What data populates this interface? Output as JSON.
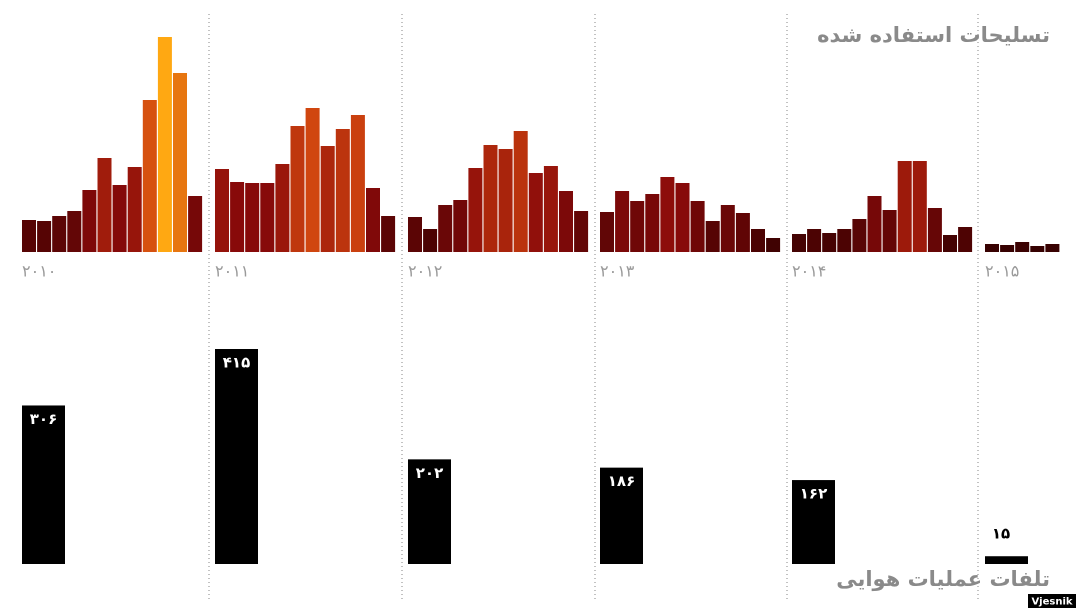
{
  "chart_data": [
    {
      "type": "grouped-bar",
      "title": "تسلیحات استفاده شده",
      "categories": [
        "۲۰۱۰",
        "۲۰۱۱",
        "۲۰۱۲",
        "۲۰۱۳",
        "۲۰۱۴",
        "۲۰۱۵"
      ],
      "values": [
        [
          32,
          31,
          36,
          41,
          62,
          94,
          67,
          85,
          152,
          215,
          179,
          56
        ],
        [
          83,
          70,
          69,
          69,
          88,
          126,
          144,
          106,
          123,
          137,
          64,
          36
        ],
        [
          35,
          23,
          47,
          52,
          84,
          107,
          103,
          121,
          79,
          86,
          61,
          41
        ],
        [
          40,
          61,
          51,
          58,
          75,
          69,
          51,
          31,
          47,
          39,
          23,
          14
        ],
        [
          18,
          23,
          19,
          23,
          33,
          56,
          42,
          91,
          91,
          44,
          17,
          25
        ],
        [
          8,
          7,
          10,
          6,
          8
        ]
      ],
      "color_scale": [
        "#2e0000",
        "#8a0a0a",
        "#d0450f",
        "#ffa812"
      ]
    },
    {
      "type": "bar",
      "title": "تلفات عملیات هوایی",
      "values": [
        306,
        415,
        202,
        186,
        162,
        15
      ],
      "value_labels": [
        "۳۰۶",
        "۴۱۵",
        "۲۰۲",
        "۱۸۶",
        "۱۶۲",
        "۱۵"
      ],
      "color": "#000000"
    }
  ],
  "credit": "Vjesnik"
}
